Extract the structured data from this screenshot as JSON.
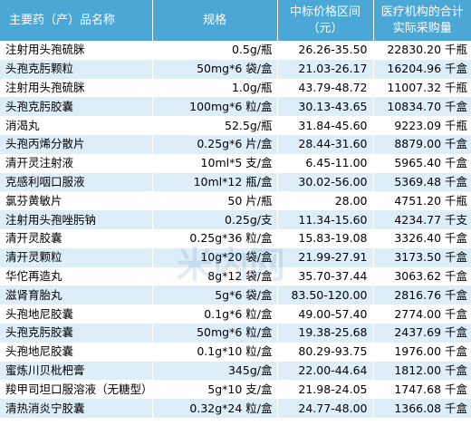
{
  "table": {
    "headers": {
      "name": "主要药（产）品名称",
      "spec": "规格",
      "price_line1": "中标价格区间",
      "price_line2": "（元）",
      "qty_line1": "医疗机构的合计",
      "qty_line2": "实际采购量"
    },
    "rows": [
      {
        "name": "注射用头孢硫脒",
        "spec": "0.5g/瓶",
        "price": "26.26-35.50",
        "qty": "22830.20 千瓶"
      },
      {
        "name": "头孢克肟颗粒",
        "spec": "50mg*6 袋/盒",
        "price": "21.03-26.17",
        "qty": "16204.96 千盒"
      },
      {
        "name": "注射用头孢硫脒",
        "spec": "1.0g/瓶",
        "price": "43.79-48.72",
        "qty": "11007.32 千瓶"
      },
      {
        "name": "头孢克肟胶囊",
        "spec": "100mg*6 粒/盒",
        "price": "30.13-43.65",
        "qty": "10834.70 千盒"
      },
      {
        "name": "消渴丸",
        "spec": "52.5g/瓶",
        "price": "31.84-45.60",
        "qty": "9223.09 千瓶"
      },
      {
        "name": "头孢丙烯分散片",
        "spec": "0.25g*6 片/盒",
        "price": "28.44-31.60",
        "qty": "8879.00 千盒"
      },
      {
        "name": "清开灵注射液",
        "spec": "10ml*5 支/盒",
        "price": "6.45-11.00",
        "qty": "5965.40 千盒"
      },
      {
        "name": "克感利咽口服液",
        "spec": "10ml*12 瓶/盒",
        "price": "30.02-56.00",
        "qty": "5369.48 千盒"
      },
      {
        "name": "氯芬黄敏片",
        "spec": "50 片/瓶",
        "price": "28.00",
        "qty": "4751.20 千瓶"
      },
      {
        "name": "注射用头孢唑肟钠",
        "spec": "0.25g/支",
        "price": "11.34-15.60",
        "qty": "4234.77 千支"
      },
      {
        "name": "清开灵胶囊",
        "spec": "0.25g*36 粒/盒",
        "price": "15.83-19.08",
        "qty": "3326.40 千盒"
      },
      {
        "name": "清开灵颗粒",
        "spec": "10g*20 袋/盒",
        "price": "21.99-27.91",
        "qty": "3173.50 千盒"
      },
      {
        "name": "华佗再造丸",
        "spec": "8g*12 袋/盒",
        "price": "35.70-37.44",
        "qty": "3063.62 千盒"
      },
      {
        "name": "滋肾育胎丸",
        "spec": "5g*6 袋/盒",
        "price": "83.50-120.00",
        "qty": "2816.76 千盒"
      },
      {
        "name": "头孢地尼胶囊",
        "spec": "0.1g*6 粒/盒",
        "price": "49.00-57.40",
        "qty": "2774.00 千盒"
      },
      {
        "name": "头孢克肟胶囊",
        "spec": "50mg*6 粒/盒",
        "price": "19.38-25.68",
        "qty": "2437.69 千盒"
      },
      {
        "name": "头孢地尼胶囊",
        "spec": "0.1g*10 粒/盒",
        "price": "80.29-93.75",
        "qty": "1976.00 千盒"
      },
      {
        "name": "蜜炼川贝枇杷膏",
        "spec": "345g/盒",
        "price": "22.00-44.64",
        "qty": "1812.00 千盒"
      },
      {
        "name": "羧甲司坦口服溶液（无糖型）",
        "spec": "5g*10 支/盒",
        "price": "21.98-24.05",
        "qty": "1747.68 千盒"
      },
      {
        "name": "清热消炎宁胶囊",
        "spec": "0.32g*24 粒/盒",
        "price": "24.77-48.00",
        "qty": "1366.08 千盒"
      }
    ]
  },
  "watermark": {
    "text": "米内网",
    "color": "#1f6fa8"
  },
  "colors": {
    "header_bg": "#4ba7d6",
    "header_text": "#ffffff",
    "row_alt_bg": "#ddeef8",
    "row_bg": "#ffffff"
  }
}
